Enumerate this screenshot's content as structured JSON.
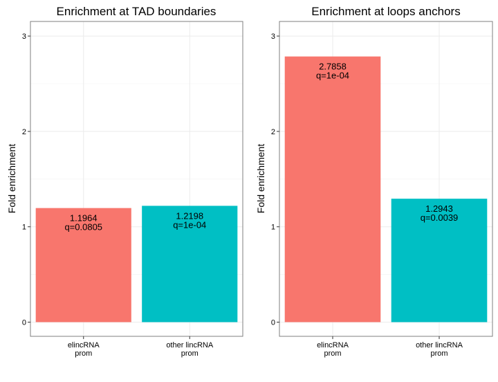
{
  "chart_data": [
    {
      "type": "bar",
      "title": "Enrichment at TAD boundaries",
      "xlabel": "",
      "ylabel": "Fold enrichment",
      "ylim": [
        0,
        3.1
      ],
      "yticks": [
        "0",
        "1",
        "2",
        "3"
      ],
      "grid": true,
      "categories": [
        [
          "elincRNA",
          "prom"
        ],
        [
          "other lincRNA",
          "prom"
        ]
      ],
      "values": [
        1.1964,
        1.2198
      ],
      "labels": [
        [
          "1.1964",
          "q=0.0805"
        ],
        [
          "1.2198",
          "q=1e-04"
        ]
      ],
      "colors": [
        "#F8766D",
        "#00BFC4"
      ]
    },
    {
      "type": "bar",
      "title": "Enrichment at loops anchors",
      "xlabel": "",
      "ylabel": "Fold enrichment",
      "ylim": [
        0,
        3.1
      ],
      "yticks": [
        "0",
        "1",
        "2",
        "3"
      ],
      "grid": true,
      "categories": [
        [
          "elincRNA",
          "prom"
        ],
        [
          "other lincRNA",
          "prom"
        ]
      ],
      "values": [
        2.7858,
        1.2943
      ],
      "labels": [
        [
          "2.7858",
          "q=1e-04"
        ],
        [
          "1.2943",
          "q=0.0039"
        ]
      ],
      "colors": [
        "#F8766D",
        "#00BFC4"
      ]
    }
  ]
}
